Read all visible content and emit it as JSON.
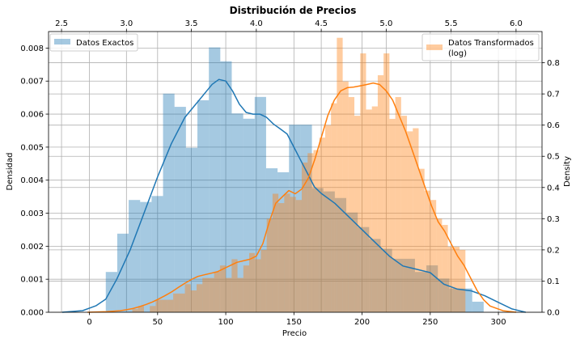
{
  "chart_data": {
    "type": "bar",
    "title": "Distribución de Precios",
    "grid": true,
    "series": [
      {
        "name": "Datos Exactos",
        "kind": "histogram",
        "color": "#1f77b4",
        "axis": "bottom-left",
        "bin_edges": [
          12,
          20.4,
          28.8,
          37.2,
          45.6,
          54,
          62.4,
          70.8,
          79.2,
          87.6,
          96,
          104.4,
          112.8,
          121.2,
          129.6,
          138,
          146.4,
          154.8,
          163.2,
          171.6,
          180,
          188.4,
          196.8,
          205.2,
          213.6,
          222,
          230.4,
          238.8,
          247.2,
          255.6,
          264,
          272.4,
          280.8,
          289.2
        ],
        "values": [
          0.00122,
          0.00238,
          0.0034,
          0.00334,
          0.00352,
          0.00662,
          0.00622,
          0.00498,
          0.00642,
          0.00802,
          0.0076,
          0.00602,
          0.00586,
          0.00652,
          0.00436,
          0.00424,
          0.00568,
          0.00568,
          0.00376,
          0.00366,
          0.00346,
          0.00302,
          0.00258,
          0.00222,
          0.00192,
          0.00162,
          0.00162,
          0.00122,
          0.00142,
          0.00102,
          0.00072,
          0.00072,
          0.00032
        ]
      },
      {
        "name": "Datos Transformados\n(log)",
        "kind": "histogram",
        "color": "#ff7f0e",
        "axis": "top-right",
        "bin_edges": [
          3.0,
          3.045,
          3.09,
          3.135,
          3.18,
          3.225,
          3.27,
          3.315,
          3.36,
          3.405,
          3.45,
          3.495,
          3.54,
          3.585,
          3.63,
          3.675,
          3.72,
          3.765,
          3.81,
          3.855,
          3.9,
          3.945,
          3.99,
          4.035,
          4.08,
          4.125,
          4.17,
          4.215,
          4.26,
          4.305,
          4.35,
          4.395,
          4.44,
          4.485,
          4.53,
          4.575,
          4.62,
          4.665,
          4.71,
          4.755,
          4.8,
          4.845,
          4.89,
          4.935,
          4.98,
          5.025,
          5.07,
          5.115,
          5.16,
          5.205,
          5.25,
          5.295,
          5.34,
          5.385,
          5.43,
          5.475,
          5.52,
          5.565,
          5.61,
          5.655
        ],
        "values": [
          0.0,
          0.01,
          0.02,
          0.0,
          0.02,
          0.04,
          0.04,
          0.04,
          0.06,
          0.06,
          0.09,
          0.07,
          0.09,
          0.11,
          0.11,
          0.13,
          0.15,
          0.11,
          0.17,
          0.11,
          0.15,
          0.19,
          0.17,
          0.2,
          0.3,
          0.38,
          0.35,
          0.38,
          0.37,
          0.36,
          0.48,
          0.51,
          0.52,
          0.56,
          0.6,
          0.67,
          0.88,
          0.74,
          0.69,
          0.63,
          0.83,
          0.65,
          0.66,
          0.76,
          0.83,
          0.62,
          0.69,
          0.63,
          0.58,
          0.59,
          0.46,
          0.39,
          0.36,
          0.3,
          0.28,
          0.21,
          0.21,
          0.2,
          0.0
        ]
      }
    ],
    "kde": [
      {
        "name": "Datos Exactos",
        "color": "#1f77b4",
        "axis": "bottom-left",
        "x": [
          -20,
          -5,
          5,
          12,
          20,
          30,
          40,
          50,
          60,
          70,
          80,
          90,
          95,
          100,
          105,
          110,
          115,
          120,
          125,
          130,
          135,
          140,
          145,
          150,
          155,
          160,
          165,
          170,
          180,
          190,
          200,
          210,
          220,
          230,
          240,
          250,
          260,
          270,
          280,
          290,
          300,
          310,
          320
        ],
        "y": [
          0.0,
          5e-05,
          0.0002,
          0.0004,
          0.001,
          0.0019,
          0.003,
          0.0041,
          0.0051,
          0.0059,
          0.0064,
          0.0069,
          0.00705,
          0.007,
          0.0067,
          0.0063,
          0.00605,
          0.006,
          0.006,
          0.0059,
          0.0057,
          0.00555,
          0.0054,
          0.005,
          0.0046,
          0.0042,
          0.0038,
          0.0036,
          0.0033,
          0.0029,
          0.0025,
          0.0021,
          0.0017,
          0.0014,
          0.0013,
          0.0012,
          0.00085,
          0.0007,
          0.00065,
          0.0005,
          0.0003,
          0.0001,
          0.0
        ]
      },
      {
        "name": "Datos Transformados\n(log)",
        "color": "#ff7f0e",
        "axis": "top-right",
        "x": [
          2.7,
          2.85,
          2.95,
          3.0,
          3.05,
          3.1,
          3.15,
          3.2,
          3.25,
          3.3,
          3.35,
          3.4,
          3.45,
          3.5,
          3.55,
          3.6,
          3.65,
          3.7,
          3.75,
          3.8,
          3.85,
          3.9,
          3.95,
          4.0,
          4.05,
          4.1,
          4.15,
          4.2,
          4.25,
          4.3,
          4.35,
          4.4,
          4.45,
          4.5,
          4.55,
          4.6,
          4.65,
          4.7,
          4.75,
          4.8,
          4.85,
          4.9,
          4.95,
          5.0,
          5.05,
          5.1,
          5.15,
          5.2,
          5.25,
          5.3,
          5.35,
          5.4,
          5.45,
          5.5,
          5.55,
          5.6,
          5.65,
          5.7,
          5.75,
          5.8,
          5.9,
          6.0
        ],
        "y": [
          0.0,
          0.002,
          0.005,
          0.008,
          0.012,
          0.018,
          0.025,
          0.033,
          0.043,
          0.054,
          0.066,
          0.08,
          0.093,
          0.105,
          0.115,
          0.12,
          0.125,
          0.13,
          0.14,
          0.15,
          0.16,
          0.165,
          0.17,
          0.18,
          0.22,
          0.29,
          0.35,
          0.37,
          0.39,
          0.38,
          0.395,
          0.43,
          0.49,
          0.56,
          0.63,
          0.68,
          0.71,
          0.72,
          0.722,
          0.726,
          0.73,
          0.735,
          0.73,
          0.71,
          0.68,
          0.63,
          0.58,
          0.52,
          0.46,
          0.4,
          0.34,
          0.29,
          0.26,
          0.22,
          0.18,
          0.15,
          0.11,
          0.07,
          0.04,
          0.02,
          0.005,
          0.0
        ]
      }
    ],
    "axes": {
      "bottom": {
        "label": "Precio",
        "lim": [
          -30,
          332
        ],
        "ticks": [
          0,
          50,
          100,
          150,
          200,
          250,
          300
        ],
        "tick_labels": [
          "0",
          "50",
          "100",
          "150",
          "200",
          "250",
          "300"
        ]
      },
      "left": {
        "label": "Densidad",
        "lim": [
          0,
          0.0085
        ],
        "ticks": [
          0,
          0.001,
          0.002,
          0.003,
          0.004,
          0.005,
          0.006,
          0.007,
          0.008
        ],
        "tick_labels": [
          "0.000",
          "0.001",
          "0.002",
          "0.003",
          "0.004",
          "0.005",
          "0.006",
          "0.007",
          "0.008"
        ]
      },
      "top": {
        "label": "",
        "lim": [
          2.4,
          6.2
        ],
        "ticks": [
          2.5,
          3.0,
          3.5,
          4.0,
          4.5,
          5.0,
          5.5,
          6.0
        ],
        "tick_labels": [
          "2.5",
          "3.0",
          "3.5",
          "4.0",
          "4.5",
          "5.0",
          "5.5",
          "6.0"
        ]
      },
      "right": {
        "label": "Density",
        "lim": [
          0,
          0.9
        ],
        "ticks": [
          0,
          0.1,
          0.2,
          0.3,
          0.4,
          0.5,
          0.6,
          0.7,
          0.8
        ],
        "tick_labels": [
          "0.0",
          "0.1",
          "0.2",
          "0.3",
          "0.4",
          "0.5",
          "0.6",
          "0.7",
          "0.8"
        ]
      }
    },
    "legends": [
      {
        "placement": "top-left",
        "series": "Datos Exactos",
        "label": "Datos Exactos",
        "color": "#1f77b4"
      },
      {
        "placement": "top-right",
        "series": "Datos Transformados\n(log)",
        "label_lines": [
          "Datos Transformados",
          "(log)"
        ],
        "color": "#ff7f0e"
      }
    ]
  }
}
